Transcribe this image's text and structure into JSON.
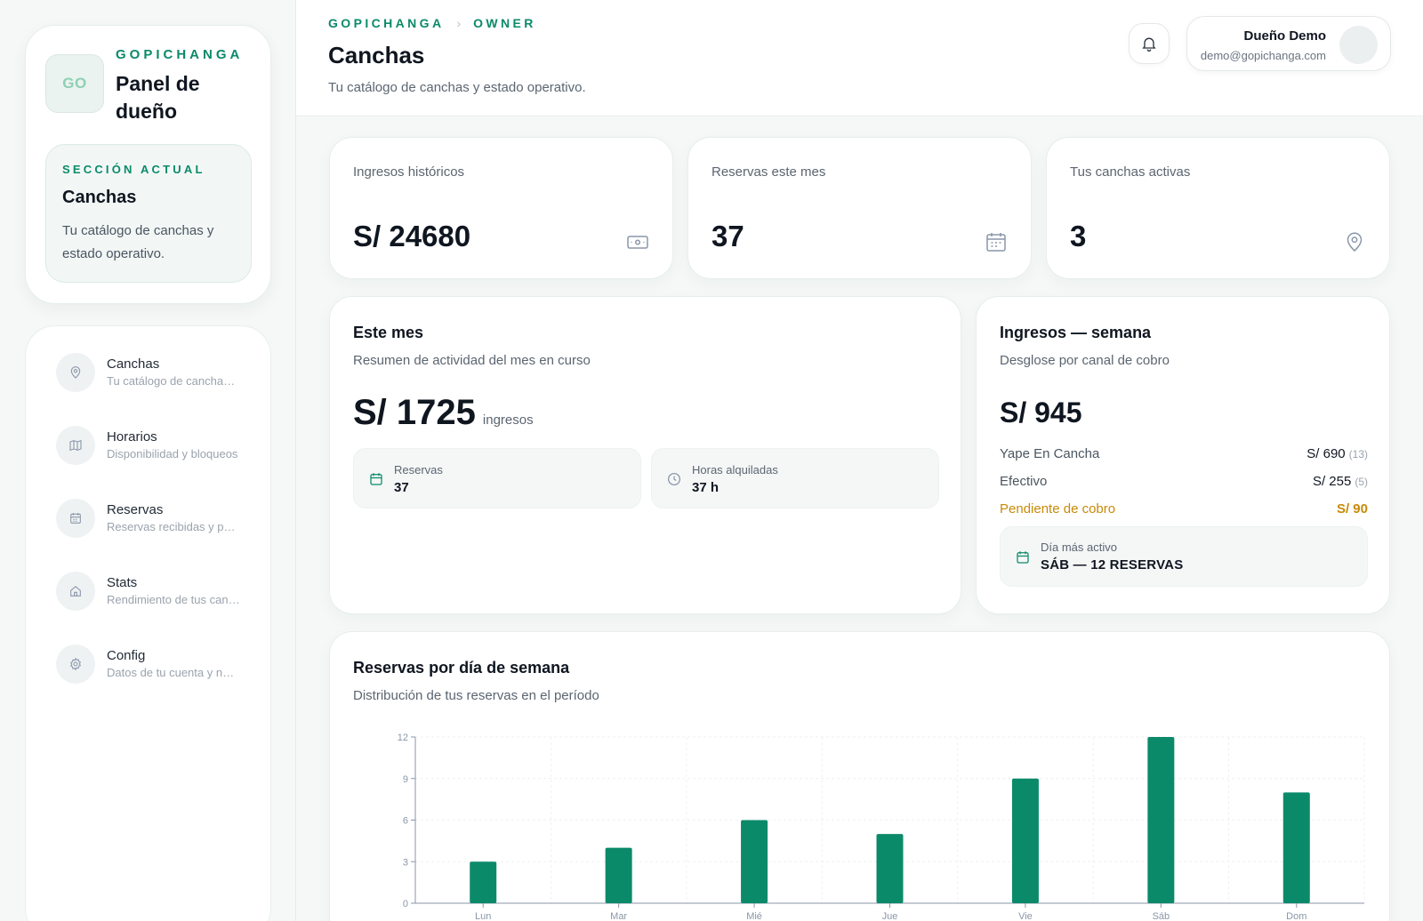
{
  "sidebar": {
    "brand_eyebrow": "GOPICHANGA",
    "logo_text": "GO",
    "brand_title": "Panel de dueño",
    "section_eyebrow": "SECCIÓN ACTUAL",
    "section_title": "Canchas",
    "section_desc": "Tu catálogo de canchas y estado operativo.",
    "items": [
      {
        "label": "Canchas",
        "desc": "Tu catálogo de canchas y estado operativo.",
        "icon": "map-pin-icon"
      },
      {
        "label": "Horarios",
        "desc": "Disponibilidad y bloqueos",
        "icon": "map-icon"
      },
      {
        "label": "Reservas",
        "desc": "Reservas recibidas y pagos",
        "icon": "calendar-icon"
      },
      {
        "label": "Stats",
        "desc": "Rendimiento de tus canchas",
        "icon": "home-icon"
      },
      {
        "label": "Config",
        "desc": "Datos de tu cuenta y negocio",
        "icon": "gear-icon"
      }
    ]
  },
  "header": {
    "breadcrumb": [
      "GOPICHANGA",
      "OWNER"
    ],
    "title": "Canchas",
    "subtitle": "Tu catálogo de canchas y estado operativo.",
    "user_name": "Dueño Demo",
    "user_email": "demo@gopichanga.com"
  },
  "stats": [
    {
      "label": "Ingresos históricos",
      "value": "S/ 24680",
      "icon": "money-icon"
    },
    {
      "label": "Reservas este mes",
      "value": "37",
      "icon": "calendar-icon"
    },
    {
      "label": "Tus canchas activas",
      "value": "3",
      "icon": "map-pin-icon"
    }
  ],
  "month": {
    "title": "Este mes",
    "subtitle": "Resumen de actividad del mes en curso",
    "value": "S/ 1725",
    "unit": "ingresos",
    "reservas_label": "Reservas",
    "reservas_value": "37",
    "horas_label": "Horas alquiladas",
    "horas_value": "37 h"
  },
  "week": {
    "title": "Ingresos — semana",
    "subtitle": "Desglose por canal de cobro",
    "value": "S/ 945",
    "rows": [
      {
        "label": "Yape En Cancha",
        "amount": "S/ 690",
        "count": "(13)"
      },
      {
        "label": "Efectivo",
        "amount": "S/ 255",
        "count": "(5)"
      }
    ],
    "pending_label": "Pendiente de cobro",
    "pending_amount": "S/ 90",
    "active_label": "Día más activo",
    "active_value": "SÁB — 12 RESERVAS"
  },
  "chart_card": {
    "title": "Reservas por día de semana",
    "subtitle": "Distribución de tus reservas en el período"
  },
  "chart_data": {
    "type": "bar",
    "categories": [
      "Lun",
      "Mar",
      "Mié",
      "Jue",
      "Vie",
      "Sáb",
      "Dom"
    ],
    "values": [
      3,
      4,
      6,
      5,
      9,
      12,
      8
    ],
    "yticks": [
      "0",
      "3",
      "6",
      "9",
      "12"
    ],
    "ylim": [
      0,
      12
    ],
    "grid": true,
    "bar_color": "#0b8a6a"
  },
  "colors": {
    "accent": "#0b8a6a",
    "pending": "#c98a07"
  }
}
